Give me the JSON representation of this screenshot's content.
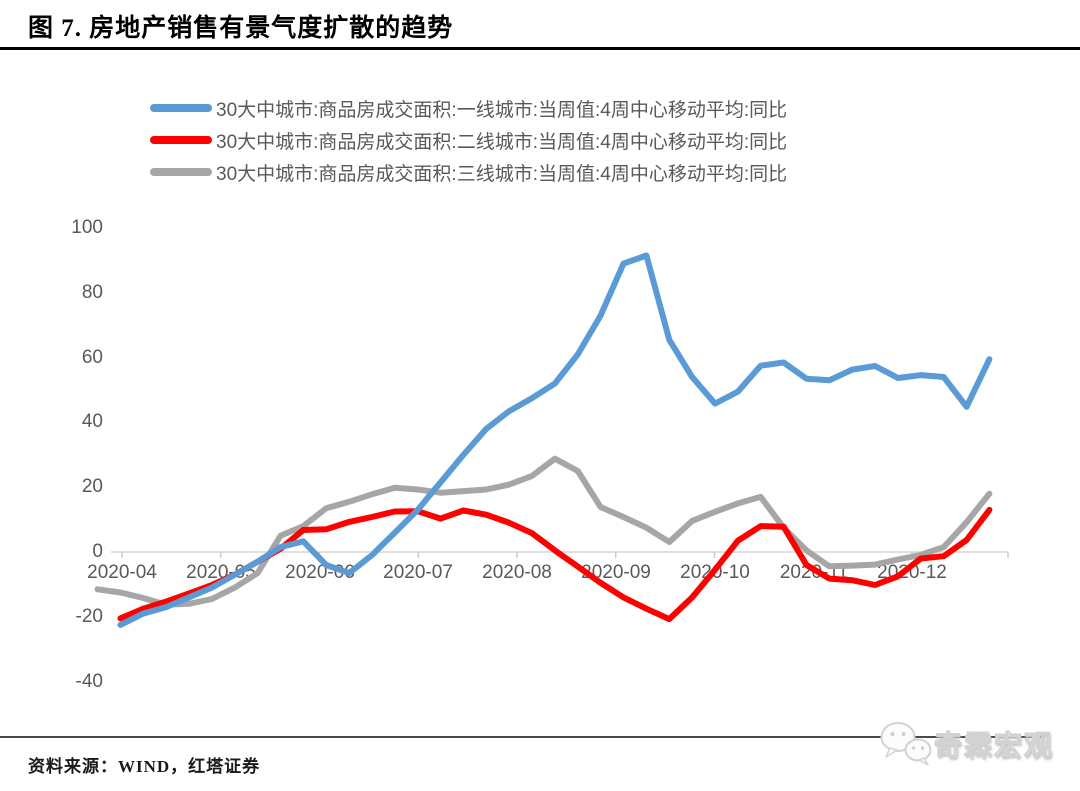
{
  "title": "图 7. 房地产销售有景气度扩散的趋势",
  "legend": [
    {
      "label": "30大中城市:商品房成交面积:一线城市:当周值:4周中心移动平均:同比",
      "color": "#5B9BD5"
    },
    {
      "label": "30大中城市:商品房成交面积:二线城市:当周值:4周中心移动平均:同比",
      "color": "#FF0000"
    },
    {
      "label": "30大中城市:商品房成交面积:三线城市:当周值:4周中心移动平均:同比",
      "color": "#A6A6A6"
    }
  ],
  "footer": {
    "source": "资料来源：WIND，红塔证券",
    "watermark_text": "奇霖宏观",
    "watermark_icon": "wechat-icon"
  },
  "chart_data": {
    "type": "line",
    "title": "图 7. 房地产销售有景气度扩散的趋势",
    "x": [
      "2020-03-27",
      "2020-04-03",
      "2020-04-10",
      "2020-04-17",
      "2020-04-24",
      "2020-05-01",
      "2020-05-08",
      "2020-05-15",
      "2020-05-22",
      "2020-05-29",
      "2020-06-05",
      "2020-06-12",
      "2020-06-19",
      "2020-06-26",
      "2020-07-03",
      "2020-07-10",
      "2020-07-17",
      "2020-07-24",
      "2020-07-31",
      "2020-08-07",
      "2020-08-14",
      "2020-08-21",
      "2020-08-28",
      "2020-09-04",
      "2020-09-11",
      "2020-09-18",
      "2020-09-25",
      "2020-10-02",
      "2020-10-09",
      "2020-10-16",
      "2020-10-23",
      "2020-10-30",
      "2020-11-06",
      "2020-11-13",
      "2020-11-20",
      "2020-11-27",
      "2020-12-04",
      "2020-12-11",
      "2020-12-18",
      "2020-12-25"
    ],
    "xtick_labels": [
      "2020-04",
      "2020-05",
      "2020-06",
      "2020-07",
      "2020-08",
      "2020-09",
      "2020-10",
      "2020-11",
      "2020-12"
    ],
    "ytick_labels": [
      "100",
      "80",
      "60",
      "40",
      "20",
      "0",
      "-20",
      "-40"
    ],
    "yticks": [
      100,
      80,
      60,
      40,
      20,
      0,
      -20,
      -40
    ],
    "ylim": [
      -40,
      100
    ],
    "grid": false,
    "legend_position": "top",
    "series": [
      {
        "name": "30大中城市:商品房成交面积:一线城市:当周值:4周中心移动平均:同比",
        "color": "#5B9BD5",
        "values": [
          null,
          -22.5,
          -19,
          -17,
          -14,
          -11,
          -7,
          -3,
          1.5,
          3.3,
          -4,
          -6.5,
          -1,
          6,
          13,
          21.5,
          30,
          38,
          43.5,
          47.5,
          52,
          61,
          73,
          89,
          91.5,
          65.5,
          54,
          45.8,
          49.5,
          57.5,
          58.5,
          53.5,
          53,
          56.3,
          57.4,
          53.7,
          54.6,
          54,
          44.8,
          59.5
        ]
      },
      {
        "name": "30大中城市:商品房成交面积:二线城市:当周值:4周中心移动平均:同比",
        "color": "#FF0000",
        "values": [
          null,
          -20.5,
          -17.5,
          -15.3,
          -12.8,
          -10.2,
          -7,
          -3,
          1,
          6.8,
          7,
          9.3,
          10.8,
          12.5,
          12.6,
          10.3,
          12.8,
          11.5,
          9,
          5.8,
          0.5,
          -4.5,
          -9.5,
          -14,
          -17.5,
          -20.7,
          -14,
          -5.5,
          3.5,
          8,
          7.8,
          -4,
          -8.2,
          -8.7,
          -10.2,
          -7.5,
          -2,
          -1.3,
          3.7,
          13
        ]
      },
      {
        "name": "30大中城市:商品房成交面积:三线城市:当周值:4周中心移动平均:同比",
        "color": "#A6A6A6",
        "values": [
          -11.5,
          -12.5,
          -14.2,
          -16.3,
          -16,
          -14.5,
          -11,
          -6.5,
          5,
          8,
          13.5,
          15.5,
          17.8,
          19.8,
          19.3,
          18.3,
          18.8,
          19.3,
          20.8,
          23.5,
          28.8,
          25,
          13.9,
          10.8,
          7.5,
          3.1,
          9.6,
          12.4,
          15,
          17,
          7.5,
          0.5,
          -4.4,
          -4.2,
          -3.9,
          -2.3,
          -0.9,
          1.5,
          9.2,
          18
        ]
      }
    ]
  }
}
